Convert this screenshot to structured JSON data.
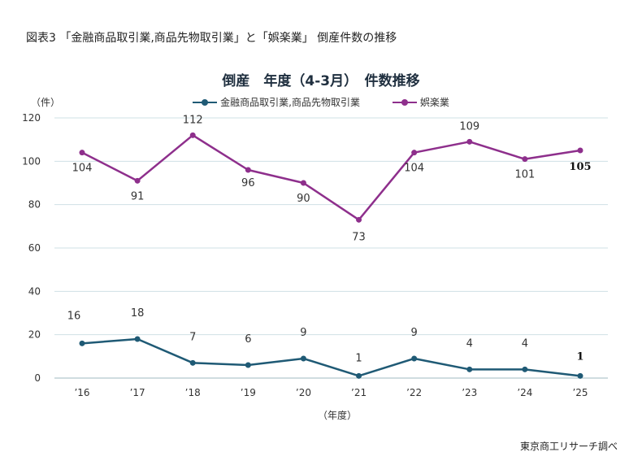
{
  "figure_caption": "図表3 「金融商品取引業,商品先物取引業」と「娯楽業」 倒産件数の推移",
  "source": "東京商工リサーチ調べ",
  "chart_data": {
    "type": "line",
    "title": "倒産　年度（4-3月）　件数推移",
    "ylabel": "（件）",
    "xlabel": "（年度）",
    "ylim": [
      0,
      120
    ],
    "yticks": [
      0,
      20,
      40,
      60,
      80,
      100,
      120
    ],
    "categories": [
      "’16",
      "’17",
      "’18",
      "’19",
      "’20",
      "’21",
      "’22",
      "’23",
      "’24",
      "’25"
    ],
    "legend": "top-center",
    "grid": true,
    "series": [
      {
        "name": "金融商品取引業,商品先物取引業",
        "color": "#1f5a75",
        "values": [
          16,
          18,
          7,
          6,
          9,
          1,
          9,
          4,
          4,
          1
        ]
      },
      {
        "name": "娯楽業",
        "color": "#8e2f8c",
        "values": [
          104,
          91,
          112,
          96,
          90,
          73,
          104,
          109,
          101,
          105
        ]
      }
    ]
  }
}
